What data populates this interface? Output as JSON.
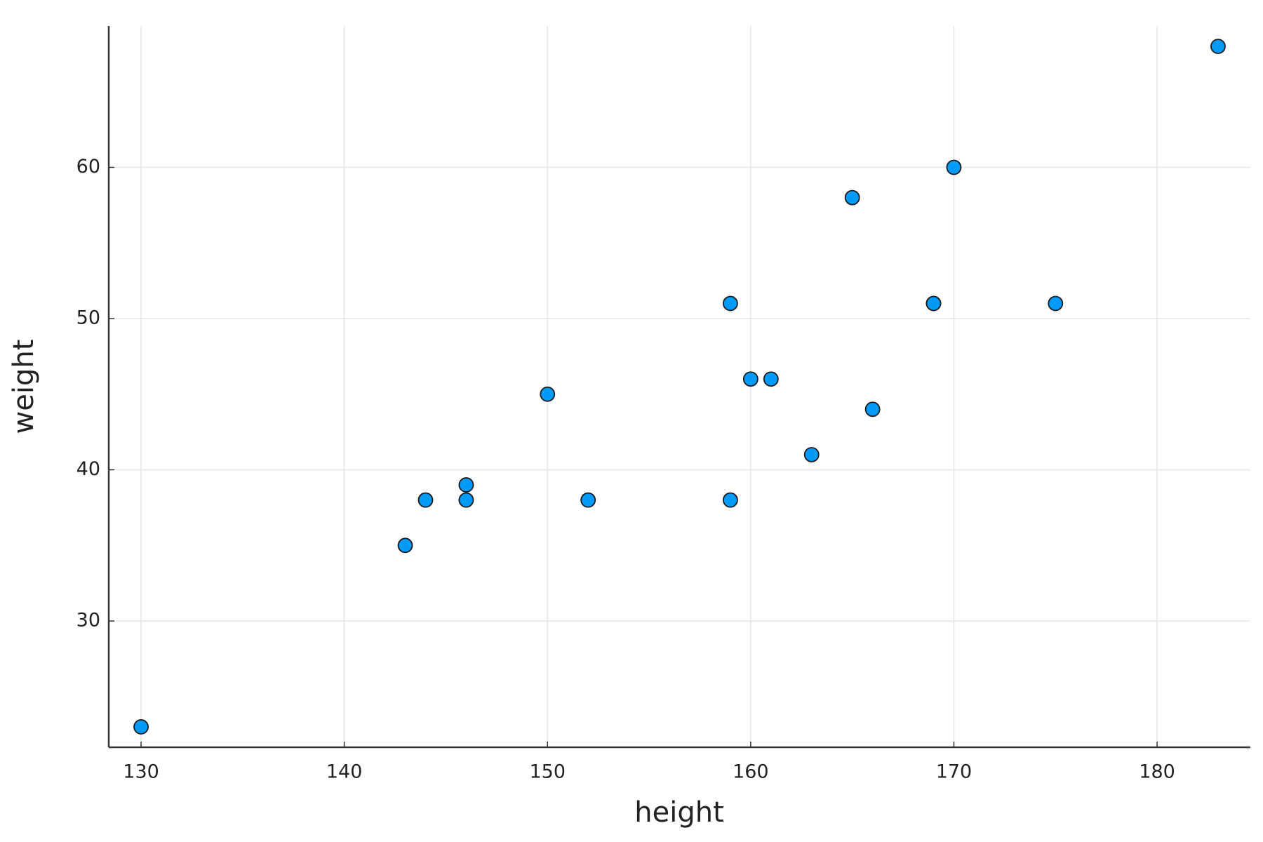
{
  "chart_data": {
    "type": "scatter",
    "xlabel": "height",
    "ylabel": "weight",
    "x": [
      130,
      143,
      144,
      146,
      146,
      150,
      152,
      159,
      159,
      160,
      161,
      163,
      165,
      166,
      169,
      169,
      170,
      175,
      183
    ],
    "values": [
      23,
      35,
      38,
      39,
      38,
      45,
      38,
      51,
      38,
      46,
      46,
      41,
      58,
      44,
      51,
      51,
      60,
      51,
      68
    ],
    "color": "#009af9",
    "xlim": [
      128.41,
      184.59
    ],
    "xticks": [
      130,
      140,
      150,
      160,
      170,
      180
    ],
    "ylim": [
      21.65,
      69.35
    ],
    "yticks": [
      30,
      40,
      50,
      60
    ],
    "grid": true
  }
}
